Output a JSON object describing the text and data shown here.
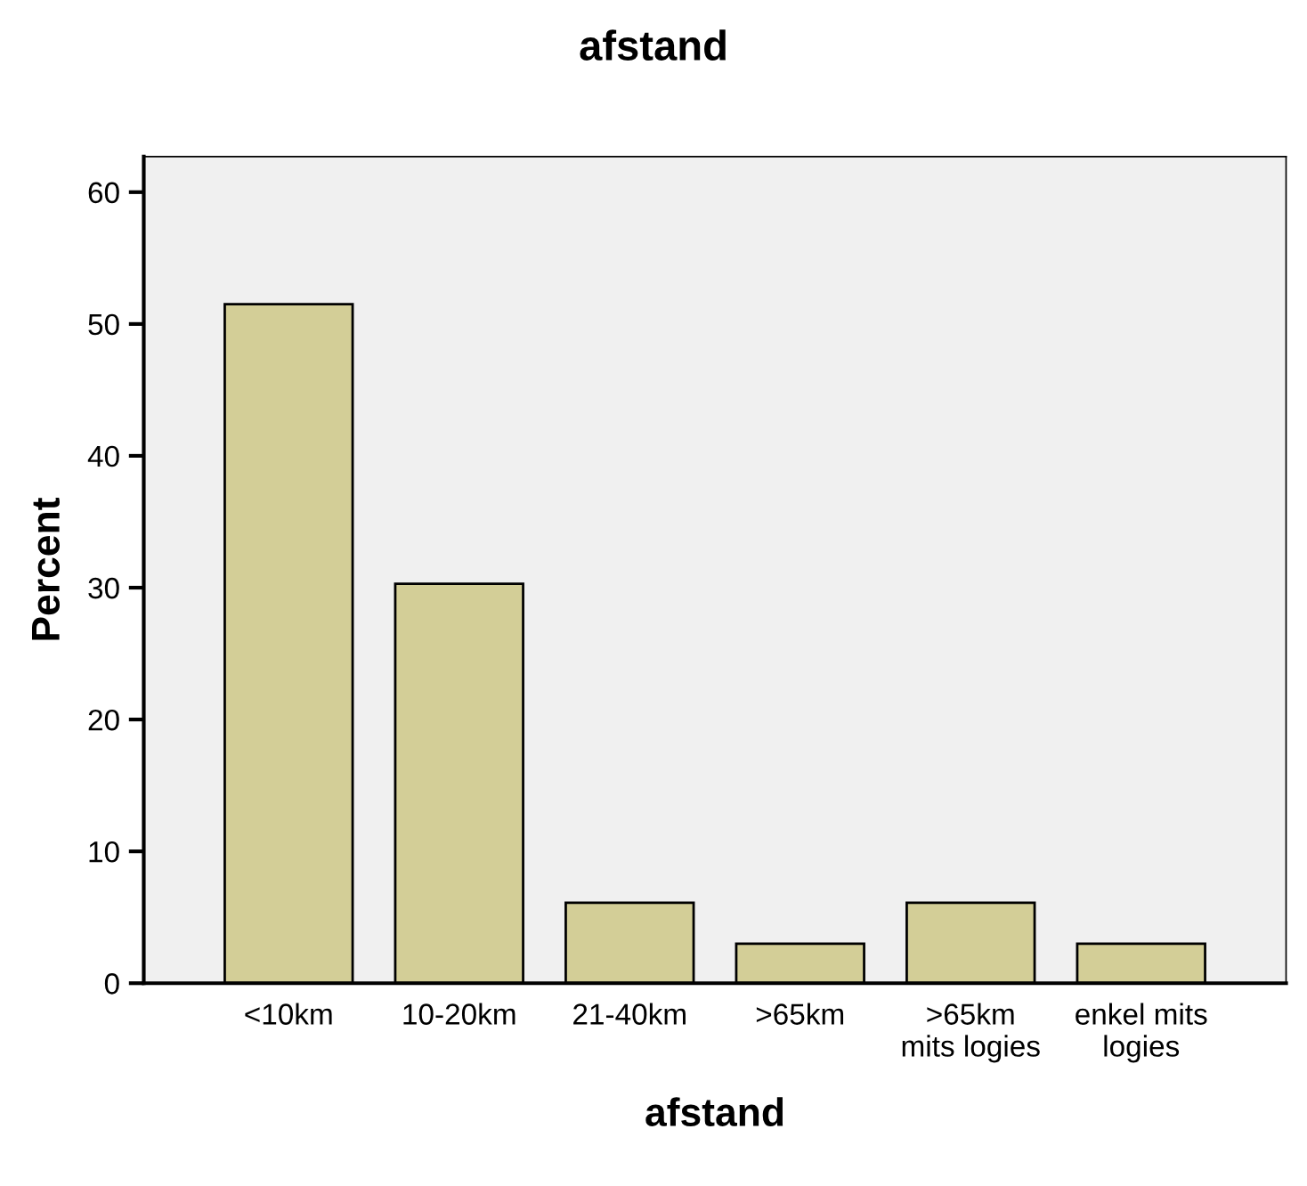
{
  "chart_data": {
    "type": "bar",
    "title": "afstand",
    "xlabel": "afstand",
    "ylabel": "Percent",
    "categories": [
      "<10km",
      "10-20km",
      "21-40km",
      ">65km",
      ">65km\nmits logies",
      "enkel mits\nlogies"
    ],
    "values": [
      51.5,
      30.3,
      6.1,
      3.0,
      6.1,
      3.0
    ],
    "color": "#d3ce97",
    "ylim": [
      0,
      62.7
    ],
    "yticks": [
      0,
      10,
      20,
      30,
      40,
      50,
      60
    ],
    "grid": false,
    "legend": false
  }
}
